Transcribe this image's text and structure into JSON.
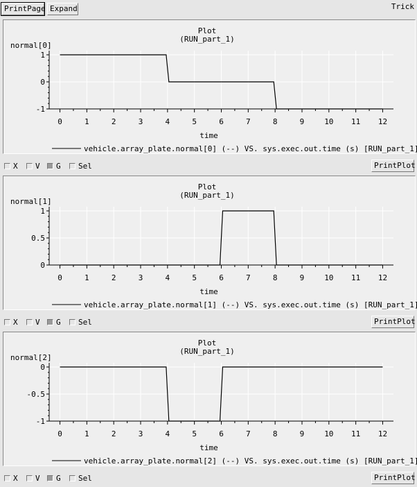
{
  "toolbar": {
    "print_page_label": "PrintPage",
    "expand_label": "Expand"
  },
  "window_label": "Trick",
  "controls": {
    "x_label": "X",
    "v_label": "V",
    "g_label": "G",
    "sel_label": "Sel",
    "print_plot_label": "PrintPlot",
    "x_checked": false,
    "v_checked": false,
    "g_checked": true,
    "sel_checked": false
  },
  "chart_data": [
    {
      "type": "line",
      "title": "Plot",
      "subtitle": "(RUN_part_1)",
      "xlabel": "time",
      "ylabel": "normal[0]",
      "xlim": [
        -0.4,
        12.4
      ],
      "ylim": [
        -1,
        1
      ],
      "xticks": [
        "0",
        "1",
        "2",
        "3",
        "4",
        "5",
        "6",
        "7",
        "8",
        "9",
        "10",
        "11",
        "12"
      ],
      "yticks": [
        {
          "v": 1,
          "label": "1"
        },
        {
          "v": 0,
          "label": "0"
        },
        {
          "v": -1,
          "label": "-1"
        }
      ],
      "grid": true,
      "series": [
        {
          "name": "vehicle.array_plate.normal[0] (--) VS. sys.exec.out.time (s) [RUN_part_1]",
          "x": [
            0,
            3.95,
            4.05,
            7.95,
            8.05,
            12
          ],
          "y": [
            1,
            1,
            0,
            0,
            -1,
            -1
          ]
        }
      ]
    },
    {
      "type": "line",
      "title": "Plot",
      "subtitle": "(RUN_part_1)",
      "xlabel": "time",
      "ylabel": "normal[1]",
      "xlim": [
        -0.4,
        12.4
      ],
      "ylim": [
        0,
        1
      ],
      "xticks": [
        "0",
        "1",
        "2",
        "3",
        "4",
        "5",
        "6",
        "7",
        "8",
        "9",
        "10",
        "11",
        "12"
      ],
      "yticks": [
        {
          "v": 1,
          "label": "1"
        },
        {
          "v": 0.5,
          "label": "0.5"
        },
        {
          "v": 0,
          "label": "0"
        }
      ],
      "grid": true,
      "series": [
        {
          "name": "vehicle.array_plate.normal[1] (--) VS. sys.exec.out.time (s) [RUN_part_1]",
          "x": [
            0,
            5.95,
            6.05,
            7.95,
            8.05,
            12
          ],
          "y": [
            0,
            0,
            1,
            1,
            0,
            0
          ]
        }
      ]
    },
    {
      "type": "line",
      "title": "Plot",
      "subtitle": "(RUN_part_1)",
      "xlabel": "time",
      "ylabel": "normal[2]",
      "xlim": [
        -0.4,
        12.4
      ],
      "ylim": [
        -1,
        0
      ],
      "xticks": [
        "0",
        "1",
        "2",
        "3",
        "4",
        "5",
        "6",
        "7",
        "8",
        "9",
        "10",
        "11",
        "12"
      ],
      "yticks": [
        {
          "v": 0,
          "label": "0"
        },
        {
          "v": -0.5,
          "label": "-0.5"
        },
        {
          "v": -1,
          "label": "-1"
        }
      ],
      "grid": true,
      "series": [
        {
          "name": "vehicle.array_plate.normal[2] (--) VS. sys.exec.out.time (s) [RUN_part_1]",
          "x": [
            0,
            3.95,
            4.05,
            5.95,
            6.05,
            12
          ],
          "y": [
            0,
            0,
            -1,
            -1,
            0,
            0
          ]
        }
      ]
    }
  ]
}
